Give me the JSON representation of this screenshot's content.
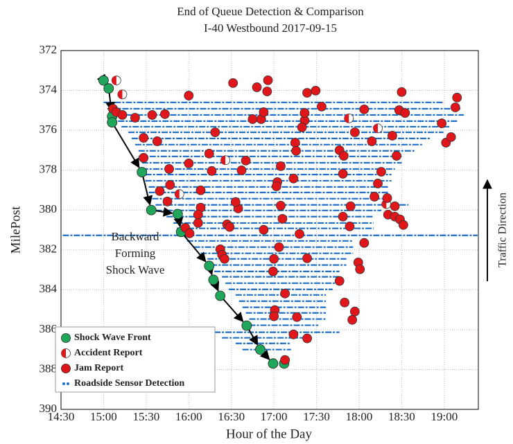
{
  "chart_data": {
    "type": "scatter",
    "title": "End of Queue Detection & Comparison",
    "subtitle": "I-40 Westbound 2017-09-15",
    "x_label": "Hour of the Day",
    "y_label": "MilePost",
    "annotation": [
      "Backward",
      "Forming",
      "Shock Wave"
    ],
    "direction_label": "Traffic Direction",
    "xlim": [
      14.5,
      19.4
    ],
    "ylim": [
      372,
      390
    ],
    "invert_y": true,
    "grid": true,
    "legend": "lower left",
    "xticks": [
      {
        "value": 14.5,
        "label": "14:30"
      },
      {
        "value": 15,
        "label": "15:00"
      },
      {
        "value": 15.5,
        "label": "15:30"
      },
      {
        "value": 16,
        "label": "16:00"
      },
      {
        "value": 16.5,
        "label": "16:30"
      },
      {
        "value": 17,
        "label": "17:00"
      },
      {
        "value": 17.5,
        "label": "17:30"
      },
      {
        "value": 18,
        "label": "18:00"
      },
      {
        "value": 18.5,
        "label": "18:30"
      },
      {
        "value": 19,
        "label": "19:00"
      }
    ],
    "yticks": [
      372,
      374,
      376,
      378,
      380,
      382,
      384,
      386,
      388,
      390
    ],
    "series": [
      {
        "name": "Shock Wave Front",
        "color": "#1fa65a",
        "marker": "front",
        "x": [
          15.0,
          15.06,
          15.1,
          15.1,
          15.45,
          15.56,
          15.87,
          15.91,
          16.24,
          16.29,
          16.37,
          16.68,
          16.84,
          16.99,
          17.12
        ],
        "values": [
          373.5,
          373.9,
          375.3,
          375.6,
          378.1,
          380.0,
          380.2,
          381.1,
          382.8,
          383.5,
          384.3,
          385.8,
          387.0,
          387.7,
          387.7
        ]
      },
      {
        "name": "Accident Report",
        "color": "#e0161b",
        "marker": "half",
        "x": [
          15.15,
          15.22,
          16.43,
          15.89,
          17.88,
          18.22,
          18.32
        ],
        "values": [
          373.5,
          374.2,
          377.5,
          379.2,
          375.4,
          375.9,
          379.7
        ]
      },
      {
        "name": "Jam Report",
        "color": "#e0161b",
        "marker": "dot",
        "x": [
          15.11,
          15.15,
          15.22,
          15.37,
          15.57,
          15.72,
          16.0,
          15.63,
          15.47,
          15.77,
          15.78,
          15.75,
          15.66,
          15.47,
          16.0,
          16.14,
          16.14,
          16.11,
          16.11,
          15.96,
          16.01,
          16.24,
          16.27,
          16.31,
          16.52,
          16.58,
          16.55,
          16.45,
          16.48,
          16.37,
          16.39,
          16.42,
          16.62,
          16.67,
          16.75,
          16.85,
          16.8,
          16.92,
          16.93,
          16.88,
          17.08,
          17.04,
          17.03,
          17.08,
          17.1,
          16.88,
          17.06,
          17.0,
          16.99,
          17.13,
          17.01,
          17.0,
          17.27,
          17.23,
          17.39,
          17.13,
          17.36,
          17.36,
          17.39,
          17.33,
          17.25,
          17.26,
          17.23,
          17.3,
          17.39,
          17.49,
          17.56,
          17.77,
          17.82,
          17.81,
          17.9,
          17.81,
          17.89,
          17.77,
          17.83,
          17.95,
          17.92,
          17.95,
          18.06,
          18.15,
          18.26,
          18.22,
          18.18,
          18.06,
          17.99,
          18.01,
          18.33,
          18.34,
          18.42,
          18.39,
          18.44,
          18.42,
          18.48,
          18.52,
          18.5,
          18.47,
          18.54,
          18.97,
          19.02,
          19.08,
          19.13,
          19.15
        ],
        "values": [
          374.92,
          375.09,
          375.23,
          375.37,
          375.23,
          375.19,
          374.26,
          376.55,
          377.38,
          377.94,
          378.74,
          379.57,
          379.05,
          376.38,
          377.66,
          379.01,
          379.88,
          380.23,
          380.65,
          380.89,
          381.17,
          377.17,
          378.04,
          376.1,
          373.63,
          379.92,
          379.6,
          380.72,
          380.85,
          381.97,
          382.24,
          382.45,
          378.01,
          377.52,
          375.44,
          375.44,
          373.84,
          374.05,
          373.49,
          375.09,
          377.8,
          378.6,
          378.81,
          379.78,
          380.44,
          380.99,
          381.86,
          382.45,
          383.08,
          384.19,
          385.02,
          385.33,
          385.37,
          386.24,
          386.44,
          387.52,
          375.51,
          375.13,
          374.12,
          375.85,
          376.62,
          377.03,
          378.42,
          381.2,
          382.42,
          374.01,
          374.81,
          377.0,
          377.28,
          378.18,
          379.81,
          380.33,
          380.82,
          383.56,
          384.64,
          385.09,
          385.51,
          376.1,
          374.95,
          376.55,
          378.08,
          378.67,
          379.33,
          381.65,
          382.63,
          382.97,
          379.4,
          380.23,
          379.81,
          376.27,
          377.28,
          380.33,
          380.47,
          380.75,
          374.08,
          374.99,
          375.13,
          375.65,
          376.62,
          376.34,
          374.85,
          374.36
        ]
      },
      {
        "name": "Roadside Sensor Detection",
        "color": "#1f6fc5",
        "marker": "sensor",
        "x": [
          15.0,
          15.09,
          15.13,
          15.17,
          15.21,
          15.29,
          15.33,
          15.37,
          15.41,
          15.41,
          15.45,
          15.45,
          15.49,
          15.49,
          15.53,
          15.53,
          15.57,
          15.61,
          15.61,
          15.74,
          15.82,
          15.86,
          14.52,
          15.98,
          16.06,
          16.14,
          16.22,
          16.26,
          16.3,
          16.39,
          16.43,
          16.47,
          16.55,
          16.59,
          16.63,
          16.67,
          16.71,
          16.71,
          16.3,
          16.39,
          16.55,
          16.63
        ],
        "x_end": [
          18.99,
          19.19,
          19.23,
          19.15,
          19.07,
          18.99,
          18.83,
          18.74,
          18.66,
          18.5,
          18.5,
          18.42,
          18.38,
          18.38,
          18.34,
          18.34,
          18.3,
          18.58,
          18.26,
          18.17,
          18.17,
          18.17,
          19.39,
          17.93,
          17.93,
          17.93,
          17.85,
          17.85,
          17.77,
          17.77,
          17.77,
          17.69,
          17.61,
          17.61,
          17.61,
          17.61,
          17.61,
          17.52,
          17.77,
          17.36,
          17.2,
          17.2
        ],
        "values": [
          374.6,
          374.92,
          375.23,
          375.54,
          375.82,
          376.1,
          376.41,
          376.72,
          377.03,
          377.31,
          377.63,
          377.94,
          378.22,
          378.53,
          378.84,
          379.12,
          379.43,
          379.74,
          380.02,
          380.33,
          380.65,
          380.92,
          381.27,
          381.55,
          381.86,
          382.17,
          382.45,
          382.76,
          383.08,
          383.35,
          383.67,
          383.98,
          384.26,
          384.57,
          384.88,
          385.16,
          385.47,
          385.78,
          386.13,
          386.41,
          386.69,
          387.0
        ]
      }
    ]
  }
}
